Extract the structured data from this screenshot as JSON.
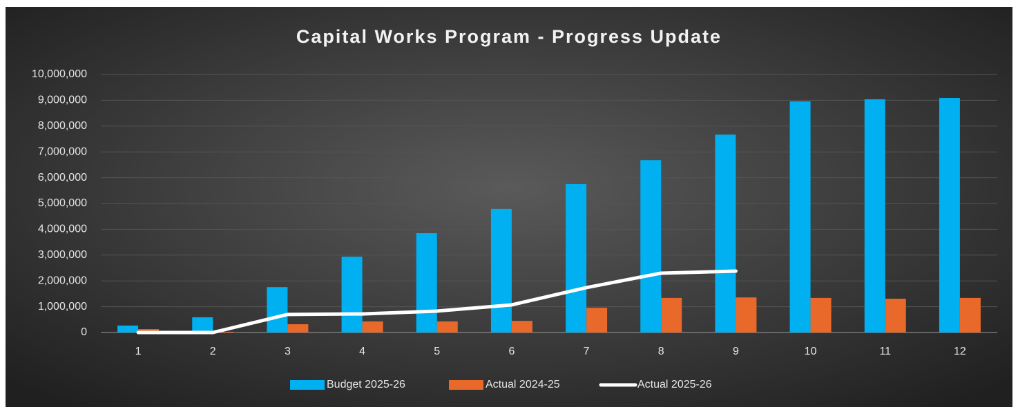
{
  "chart_data": {
    "type": "bar-line",
    "title": "Capital Works Program - Progress Update",
    "categories": [
      "1",
      "2",
      "3",
      "4",
      "5",
      "6",
      "7",
      "8",
      "9",
      "10",
      "11",
      "12"
    ],
    "series": [
      {
        "name": "Budget 2025-26",
        "type": "bar",
        "color": "#00b0f0",
        "values": [
          270000,
          590000,
          1760000,
          2940000,
          3850000,
          4790000,
          5750000,
          6680000,
          7670000,
          8960000,
          9040000,
          9090000
        ]
      },
      {
        "name": "Actual 2024-25",
        "type": "bar",
        "color": "#e8692a",
        "values": [
          130000,
          30000,
          320000,
          430000,
          430000,
          450000,
          960000,
          1340000,
          1360000,
          1340000,
          1310000,
          1340000
        ]
      },
      {
        "name": "Actual 2025-26",
        "type": "line",
        "color": "#ffffff",
        "values": [
          0,
          0,
          700000,
          720000,
          830000,
          1070000,
          1740000,
          2300000,
          2380000,
          null,
          null,
          null
        ]
      }
    ],
    "ylim": [
      0,
      10000000
    ],
    "yticks": [
      0,
      {
        "value": 1000000,
        "label": "1,000,000"
      },
      {
        "value": 2000000,
        "label": "2,000,000"
      },
      {
        "value": 3000000,
        "label": "3,000,000"
      },
      {
        "value": 4000000,
        "label": "4,000,000"
      },
      {
        "value": 5000000,
        "label": "5,000,000"
      },
      {
        "value": 6000000,
        "label": "6,000,000"
      },
      {
        "value": 7000000,
        "label": "7,000,000"
      },
      {
        "value": 8000000,
        "label": "8,000,000"
      },
      {
        "value": 9000000,
        "label": "9,000,000"
      },
      {
        "value": 10000000,
        "label": "10,000,000"
      }
    ],
    "grid": true,
    "legend": "bottom"
  }
}
